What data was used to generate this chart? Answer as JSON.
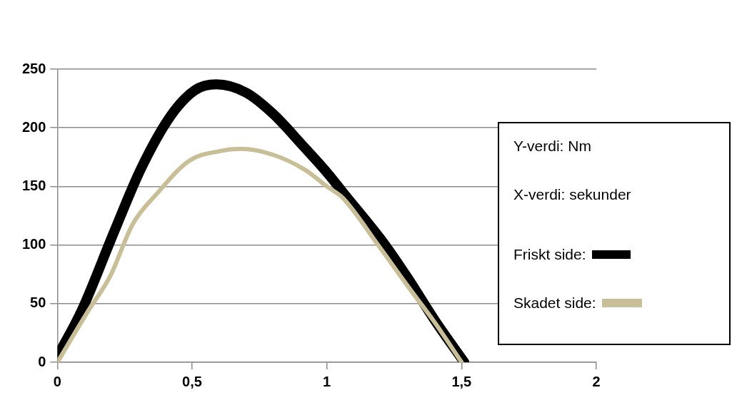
{
  "chart_data": {
    "type": "line",
    "xlim": [
      0,
      2
    ],
    "xticks": [
      0,
      {
        "value": 0.5,
        "label": "0,5"
      },
      1,
      {
        "value": 1.5,
        "label": "1,5"
      },
      2
    ],
    "ylim": [
      0,
      250
    ],
    "yticks": [
      0,
      50,
      100,
      150,
      200,
      250
    ],
    "grid": "y",
    "legend": "right",
    "marker": "none",
    "line_style": "solid",
    "annotations": [
      "Y-verdi: Nm",
      "X-verdi: sekunder"
    ],
    "series": [
      {
        "name": "Friskt side:",
        "color": "#000000",
        "x": [
          0,
          0.09,
          0.21,
          0.31,
          0.42,
          0.51,
          0.59,
          0.7,
          0.8,
          0.91,
          1,
          1.07,
          1.21,
          1.3,
          1.4,
          1.51
        ],
        "values": [
          5,
          44,
          111,
          165,
          210,
          232,
          237,
          230,
          212,
          185,
          162,
          142,
          102,
          72,
          36,
          0
        ]
      },
      {
        "name": "Skadet side:",
        "color": "#c8bf99",
        "x": [
          0,
          0.115,
          0.195,
          0.28,
          0.37,
          0.49,
          0.6,
          0.68,
          0.8,
          0.92,
          1,
          1.06,
          1.19,
          1.3,
          1.4,
          1.5
        ],
        "values": [
          0,
          44,
          73,
          118,
          144,
          172,
          180,
          182,
          177,
          164,
          150,
          140,
          100,
          65,
          34,
          0
        ]
      }
    ]
  }
}
